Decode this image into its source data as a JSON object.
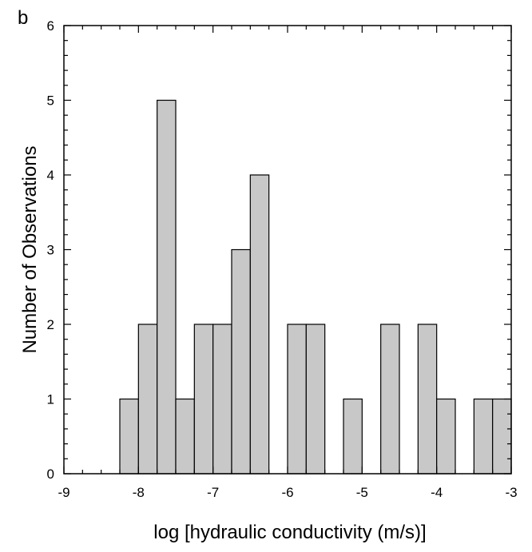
{
  "chart_data": {
    "type": "bar",
    "panel_label": "b",
    "xlabel": "log [hydraulic conductivity (m/s)]",
    "ylabel": "Number of Observations",
    "xlim": [
      -9,
      -3
    ],
    "ylim": [
      0,
      6
    ],
    "x_ticks": [
      -9,
      -8,
      -7,
      -6,
      -5,
      -4,
      -3
    ],
    "y_ticks": [
      0,
      1,
      2,
      3,
      4,
      5,
      6
    ],
    "bin_width": 0.25,
    "bar_fill": "#c8c8c8",
    "bins": [
      {
        "start": -8.25,
        "count": 1
      },
      {
        "start": -8.0,
        "count": 2
      },
      {
        "start": -7.75,
        "count": 5
      },
      {
        "start": -7.5,
        "count": 1
      },
      {
        "start": -7.25,
        "count": 2
      },
      {
        "start": -7.0,
        "count": 2
      },
      {
        "start": -6.75,
        "count": 3
      },
      {
        "start": -6.5,
        "count": 4
      },
      {
        "start": -6.0,
        "count": 2
      },
      {
        "start": -5.75,
        "count": 2
      },
      {
        "start": -5.25,
        "count": 1
      },
      {
        "start": -4.75,
        "count": 2
      },
      {
        "start": -4.25,
        "count": 2
      },
      {
        "start": -4.0,
        "count": 1
      },
      {
        "start": -3.5,
        "count": 1
      },
      {
        "start": -3.25,
        "count": 1
      }
    ]
  }
}
